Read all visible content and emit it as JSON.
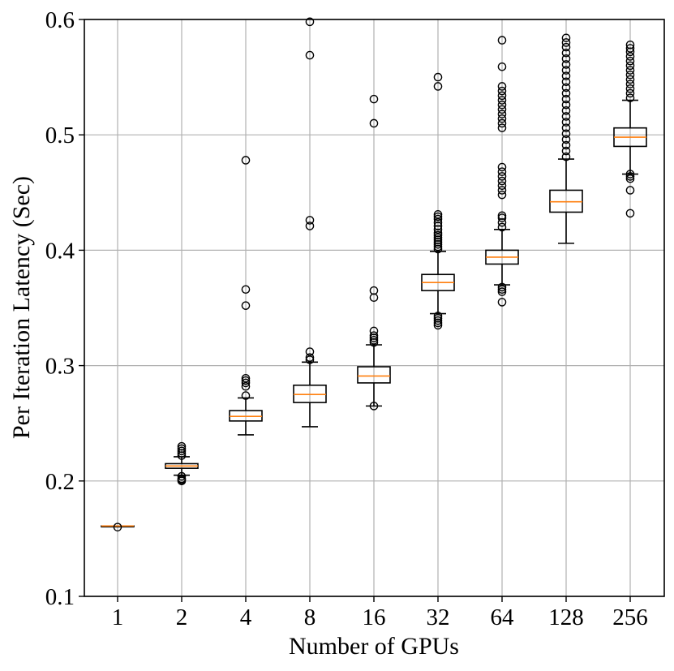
{
  "chart_data": {
    "type": "boxplot",
    "title": "",
    "xlabel": "Number of GPUs",
    "ylabel": "Per Iteration Latency (Sec)",
    "ylim": [
      0.1,
      0.6
    ],
    "yticks": [
      0.1,
      0.2,
      0.3,
      0.4,
      0.5,
      0.6
    ],
    "ytick_labels": [
      "0.1",
      "0.2",
      "0.3",
      "0.4",
      "0.5",
      "0.6"
    ],
    "grid": true,
    "colors": {
      "box": "#000000",
      "median": "#ff7f0e",
      "grid": "#b0b0b0",
      "flier": "#000000"
    },
    "categories": [
      "1",
      "2",
      "4",
      "8",
      "16",
      "32",
      "64",
      "128",
      "256"
    ],
    "boxes": [
      {
        "category": "1",
        "whisker_low": 0.161,
        "q1": 0.161,
        "median": 0.161,
        "q3": 0.161,
        "whisker_high": 0.161,
        "fliers": [
          0.16
        ]
      },
      {
        "category": "2",
        "whisker_low": 0.205,
        "q1": 0.211,
        "median": 0.213,
        "q3": 0.215,
        "whisker_high": 0.221,
        "fliers": [
          0.2,
          0.201,
          0.202,
          0.204,
          0.222,
          0.224,
          0.226,
          0.228,
          0.23
        ]
      },
      {
        "category": "4",
        "whisker_low": 0.24,
        "q1": 0.252,
        "median": 0.256,
        "q3": 0.261,
        "whisker_high": 0.272,
        "fliers": [
          0.274,
          0.282,
          0.285,
          0.287,
          0.289,
          0.352,
          0.366,
          0.478
        ]
      },
      {
        "category": "8",
        "whisker_low": 0.247,
        "q1": 0.268,
        "median": 0.275,
        "q3": 0.283,
        "whisker_high": 0.303,
        "fliers": [
          0.305,
          0.307,
          0.312,
          0.421,
          0.426,
          0.569,
          0.598
        ]
      },
      {
        "category": "16",
        "whisker_low": 0.265,
        "q1": 0.285,
        "median": 0.291,
        "q3": 0.299,
        "whisker_high": 0.318,
        "fliers": [
          0.265,
          0.32,
          0.322,
          0.324,
          0.326,
          0.33,
          0.359,
          0.365,
          0.51,
          0.531
        ]
      },
      {
        "category": "32",
        "whisker_low": 0.345,
        "q1": 0.365,
        "median": 0.372,
        "q3": 0.379,
        "whisker_high": 0.399,
        "fliers": [
          0.335,
          0.337,
          0.339,
          0.341,
          0.343,
          0.401,
          0.403,
          0.405,
          0.407,
          0.409,
          0.411,
          0.413,
          0.415,
          0.418,
          0.421,
          0.424,
          0.427,
          0.429,
          0.431,
          0.542,
          0.55
        ]
      },
      {
        "category": "64",
        "whisker_low": 0.37,
        "q1": 0.388,
        "median": 0.394,
        "q3": 0.4,
        "whisker_high": 0.418,
        "fliers": [
          0.355,
          0.364,
          0.366,
          0.368,
          0.42,
          0.424,
          0.428,
          0.43,
          0.448,
          0.452,
          0.456,
          0.46,
          0.464,
          0.468,
          0.472,
          0.506,
          0.51,
          0.514,
          0.518,
          0.522,
          0.526,
          0.53,
          0.534,
          0.538,
          0.542,
          0.559,
          0.582
        ]
      },
      {
        "category": "128",
        "whisker_low": 0.406,
        "q1": 0.433,
        "median": 0.442,
        "q3": 0.452,
        "whisker_high": 0.479,
        "fliers": [
          0.481,
          0.486,
          0.491,
          0.496,
          0.501,
          0.506,
          0.511,
          0.516,
          0.521,
          0.526,
          0.531,
          0.536,
          0.541,
          0.546,
          0.551,
          0.556,
          0.561,
          0.566,
          0.571,
          0.576,
          0.58,
          0.584
        ]
      },
      {
        "category": "256",
        "whisker_low": 0.466,
        "q1": 0.49,
        "median": 0.498,
        "q3": 0.506,
        "whisker_high": 0.53,
        "fliers": [
          0.432,
          0.452,
          0.462,
          0.464,
          0.466,
          0.532,
          0.536,
          0.54,
          0.544,
          0.548,
          0.552,
          0.556,
          0.56,
          0.564,
          0.568,
          0.572,
          0.575,
          0.578
        ]
      }
    ]
  }
}
